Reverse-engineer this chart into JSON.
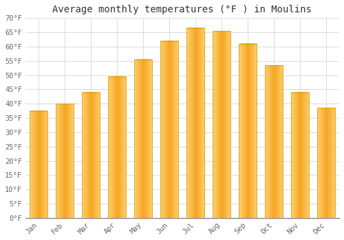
{
  "title": "Average monthly temperatures (°F ) in Moulins",
  "months": [
    "Jan",
    "Feb",
    "Mar",
    "Apr",
    "May",
    "Jun",
    "Jul",
    "Aug",
    "Sep",
    "Oct",
    "Nov",
    "Dec"
  ],
  "values": [
    37.5,
    40.0,
    44.0,
    49.5,
    55.5,
    62.0,
    66.5,
    65.5,
    61.0,
    53.5,
    44.0,
    38.5
  ],
  "bar_color_center": "#F5A623",
  "bar_color_edge": "#FFD070",
  "bar_edge_color": "#C8A000",
  "ylim": [
    0,
    70
  ],
  "yticks": [
    0,
    5,
    10,
    15,
    20,
    25,
    30,
    35,
    40,
    45,
    50,
    55,
    60,
    65,
    70
  ],
  "grid_color": "#dddddd",
  "background_color": "#ffffff",
  "plot_bg_color": "#ffffff",
  "title_fontsize": 10,
  "tick_fontsize": 7.5,
  "font_family": "monospace",
  "tick_color": "#666666",
  "bar_width": 0.7
}
